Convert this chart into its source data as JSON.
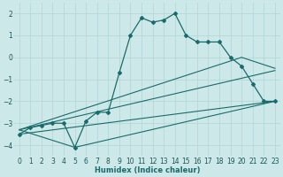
{
  "xlabel": "Humidex (Indice chaleur)",
  "xlim": [
    -0.5,
    23.5
  ],
  "ylim": [
    -4.5,
    2.5
  ],
  "xticks": [
    0,
    1,
    2,
    3,
    4,
    5,
    6,
    7,
    8,
    9,
    10,
    11,
    12,
    13,
    14,
    15,
    16,
    17,
    18,
    19,
    20,
    21,
    22,
    23
  ],
  "yticks": [
    -4,
    -3,
    -2,
    -1,
    0,
    1,
    2
  ],
  "bg_color": "#cde8e8",
  "line_color": "#1a6b6b",
  "grid_color": "#b0d4d4",
  "line1_x": [
    0,
    1,
    2,
    3,
    4,
    5,
    6,
    7,
    8,
    9,
    10,
    11,
    12,
    13,
    14,
    15,
    16,
    17,
    18,
    19,
    20,
    21,
    22,
    23
  ],
  "line1_y": [
    -3.5,
    -3.2,
    -3.1,
    -3.0,
    -3.0,
    -4.1,
    -2.9,
    -2.5,
    -2.5,
    -0.7,
    1.0,
    1.8,
    1.6,
    1.7,
    2.0,
    1.0,
    0.7,
    0.7,
    0.7,
    0.0,
    -0.4,
    -1.2,
    -2.0,
    -2.0
  ],
  "line2_x": [
    0,
    20,
    23
  ],
  "line2_y": [
    -3.3,
    0.0,
    -0.5
  ],
  "line3_x": [
    0,
    23
  ],
  "line3_y": [
    -3.3,
    -0.6
  ],
  "line4_x": [
    0,
    5,
    23
  ],
  "line4_y": [
    -3.3,
    -4.1,
    -2.0
  ],
  "line5_x": [
    0,
    23
  ],
  "line5_y": [
    -3.5,
    -2.0
  ]
}
